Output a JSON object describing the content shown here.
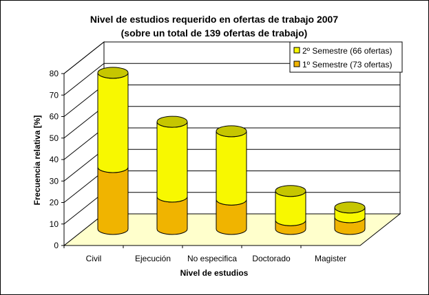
{
  "chart_data": {
    "type": "bar",
    "stacked": true,
    "three_d": true,
    "title": "Nivel de estudios requerido en ofertas de trabajo 2007",
    "subtitle": "(sobre un total de 139 ofertas de trabajo)",
    "xlabel": "Nivel de estudios",
    "ylabel": "Frecuencia relativa [%]",
    "ylim": [
      0,
      80
    ],
    "yticks": [
      0,
      10,
      20,
      30,
      40,
      50,
      60,
      70,
      80
    ],
    "categories": [
      "Civil",
      "Ejecución",
      "No especifica",
      "Doctorado",
      "Magister"
    ],
    "series": [
      {
        "name": "1º Semestre (73 ofertas)",
        "values": [
          28.8,
          15.1,
          13.7,
          4.1,
          5.5
        ],
        "color": "#f0b400"
      },
      {
        "name": "2º Semestre (66 ofertas)",
        "values": [
          43.9,
          34.8,
          31.8,
          13.6,
          4.5
        ],
        "color": "#f8f800"
      }
    ],
    "grid": true,
    "legend_position": "top-right",
    "floor_color": "#ffffcc"
  }
}
